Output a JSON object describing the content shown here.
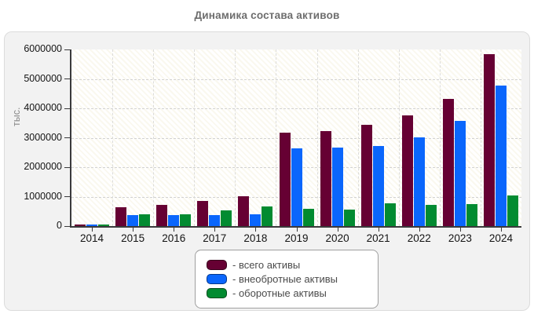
{
  "page": {
    "title": "Динамика состава активов"
  },
  "chart_data": {
    "type": "bar",
    "title": "Динамика состава активов",
    "xlabel": "",
    "ylabel": "тыс.",
    "ylim": [
      0,
      6000000
    ],
    "yticks": [
      0,
      1000000,
      2000000,
      3000000,
      4000000,
      5000000,
      6000000
    ],
    "grid": true,
    "legend_position": "bottom-center",
    "categories": [
      "2014",
      "2015",
      "2016",
      "2017",
      "2018",
      "2019",
      "2020",
      "2021",
      "2022",
      "2023",
      "2024"
    ],
    "series": [
      {
        "name": "всего активы",
        "legend_label": "- всего активы",
        "color": "#660033",
        "values": [
          60000,
          650000,
          710000,
          840000,
          1020000,
          3170000,
          3230000,
          3440000,
          3750000,
          4320000,
          5840000
        ]
      },
      {
        "name": "внеобротные активы",
        "legend_label": "- внеобротные активы",
        "color": "#0a66fc",
        "values": [
          50000,
          360000,
          380000,
          360000,
          390000,
          2630000,
          2660000,
          2730000,
          3000000,
          3560000,
          4780000
        ]
      },
      {
        "name": "оборотные активы",
        "legend_label": "- оборотные активы",
        "color": "#028b31",
        "values": [
          50000,
          390000,
          410000,
          520000,
          660000,
          580000,
          570000,
          760000,
          730000,
          740000,
          1050000
        ]
      }
    ]
  },
  "colors": {
    "card_background": "#f2f2f2",
    "plot_hatch": "#faf8ef",
    "axis": "#3a3a3c",
    "title_text": "#6d6d6d",
    "tick_text": "#141414",
    "ylabel_text": "#8a8a8a",
    "legend_text": "#4b4b4b"
  }
}
